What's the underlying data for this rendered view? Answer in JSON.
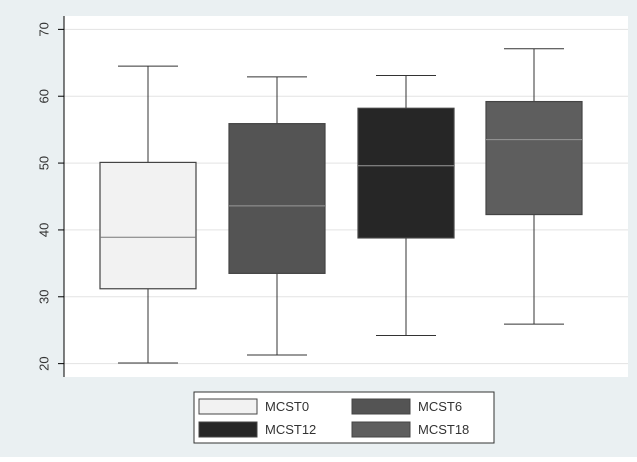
{
  "chart_data": {
    "type": "box",
    "title": "",
    "xlabel": "",
    "ylabel": "",
    "ylim": [
      18,
      72
    ],
    "yticks": [
      20,
      30,
      40,
      50,
      60,
      70
    ],
    "grid": true,
    "legend_position": "bottom",
    "series": [
      {
        "name": "MCST0",
        "min": 20.1,
        "q1": 31.2,
        "median": 38.9,
        "q3": 50.1,
        "max": 64.5,
        "color": "#f2f2f2"
      },
      {
        "name": "MCST6",
        "min": 21.3,
        "q1": 33.5,
        "median": 43.6,
        "q3": 55.9,
        "max": 62.9,
        "color": "#545454"
      },
      {
        "name": "MCST12",
        "min": 24.2,
        "q1": 38.8,
        "median": 49.6,
        "q3": 58.2,
        "max": 63.1,
        "color": "#262626"
      },
      {
        "name": "MCST18",
        "min": 25.9,
        "q1": 42.3,
        "median": 53.5,
        "q3": 59.2,
        "max": 67.1,
        "color": "#5e5e5e"
      }
    ]
  }
}
